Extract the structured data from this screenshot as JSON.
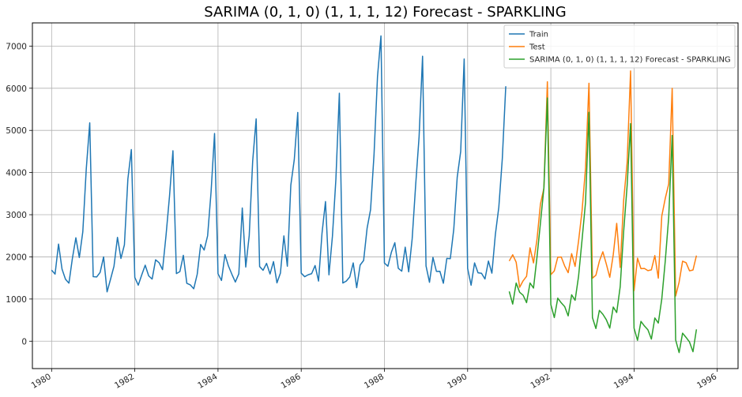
{
  "chart_data": {
    "type": "line",
    "title": "SARIMA (0, 1, 0) (1, 1, 1, 12) Forecast - SPARKLING",
    "xlabel": "",
    "ylabel": "",
    "grid": true,
    "legend_position": "top-right",
    "xlim": [
      "1979-07-15",
      "1996-07-01"
    ],
    "ylim": [
      -650,
      7550
    ],
    "x_ticks": [
      "1980",
      "1982",
      "1984",
      "1986",
      "1988",
      "1990",
      "1992",
      "1994",
      "1996"
    ],
    "y_ticks": [
      "0",
      "1000",
      "2000",
      "3000",
      "4000",
      "5000",
      "6000",
      "7000"
    ],
    "series": [
      {
        "name": "Train",
        "color": "#1f77b4",
        "start": "1980-01",
        "values": [
          1686,
          1591,
          2304,
          1712,
          1471,
          1377,
          1966,
          2453,
          1984,
          2596,
          4087,
          5179,
          1530,
          1523,
          1633,
          2000,
          1170,
          1470,
          1781,
          2463,
          1962,
          2285,
          3846,
          4545,
          1510,
          1329,
          1574,
          1803,
          1550,
          1474,
          1930,
          1862,
          1697,
          2505,
          3430,
          4517,
          1604,
          1650,
          2036,
          1374,
          1336,
          1244,
          1587,
          2294,
          2162,
          2500,
          3545,
          4927,
          1600,
          1441,
          2054,
          1786,
          1587,
          1404,
          1597,
          3159,
          1759,
          2504,
          4273,
          5274,
          1771,
          1682,
          1846,
          1594,
          1888,
          1383,
          1616,
          2498,
          1778,
          3700,
          4309,
          5426,
          1614,
          1530,
          1575,
          1601,
          1794,
          1426,
          2563,
          3312,
          1574,
          2487,
          3843,
          5882,
          1380,
          1426,
          1524,
          1857,
          1269,
          1807,
          1915,
          2677,
          3119,
          4424,
          6270,
          7242,
          1853,
          1779,
          2108,
          2336,
          1728,
          1661,
          2230,
          1645,
          2426,
          3695,
          4851,
          6758,
          1785,
          1397,
          1987,
          1655,
          1657,
          1374,
          1963,
          1958,
          2654,
          3893,
          4501,
          6694,
          1725,
          1327,
          1856,
          1622,
          1611,
          1475,
          1900,
          1613,
          2533,
          3182,
          4327,
          6048
        ]
      },
      {
        "name": "Test",
        "color": "#ff7f0e",
        "start": "1991-01",
        "values": [
          1902,
          2049,
          1874,
          1279,
          1432,
          1540,
          2214,
          1857,
          2408,
          3252,
          3627,
          6153,
          1577,
          1667,
          1993,
          1997,
          1783,
          1625,
          2076,
          1773,
          2377,
          3088,
          4096,
          6119,
          1494,
          1564,
          1898,
          2121,
          1831,
          1515,
          2048,
          2795,
          1749,
          3339,
          4227,
          6410,
          1197,
          1968,
          1720,
          1725,
          1674,
          1693,
          2031,
          1495,
          2968,
          3385,
          3729,
          5999,
          1070,
          1402,
          1897,
          1862,
          1670,
          1688,
          2031
        ]
      },
      {
        "name": "SARIMA (0, 1, 0) (1, 1, 1, 12) Forecast - SPARKLING",
        "color": "#2ca02c",
        "start": "1991-01",
        "values": [
          1180,
          880,
          1380,
          1160,
          1090,
          915,
          1380,
          1260,
          1990,
          2800,
          3640,
          5770,
          870,
          560,
          1020,
          910,
          820,
          600,
          1100,
          970,
          1540,
          2400,
          3290,
          5430,
          560,
          300,
          730,
          640,
          510,
          310,
          810,
          680,
          1290,
          2600,
          3680,
          5160,
          310,
          20,
          470,
          360,
          270,
          50,
          550,
          430,
          1000,
          1900,
          2940,
          4880,
          30,
          -270,
          190,
          90,
          -20,
          -250,
          280
        ]
      }
    ]
  }
}
